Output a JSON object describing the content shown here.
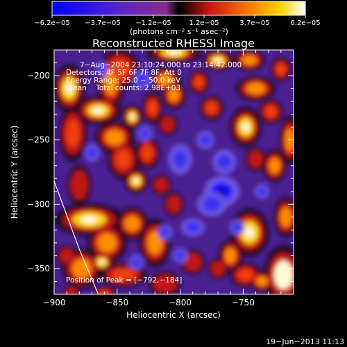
{
  "chart_data": {
    "type": "heatmap",
    "title": "Reconstructed RHESSI Image",
    "xlabel": "Heliocentric X (arcsec)",
    "ylabel": "Heliocentric Y (arcsec)",
    "xlim": [
      -900,
      -710
    ],
    "ylim": [
      -370,
      -180
    ],
    "x_ticks": [
      -900,
      -850,
      -800,
      -750
    ],
    "x_tick_labels": [
      "−900",
      "−850",
      "−800",
      "−750"
    ],
    "y_ticks": [
      -200,
      -250,
      -300,
      -350
    ],
    "y_tick_labels": [
      "−200",
      "−250",
      "−300",
      "−350"
    ],
    "colorbar": {
      "range": [
        -6.2e-05,
        6.2e-05
      ],
      "tick_labels": [
        "−6.2e−05",
        "−3.7e−05",
        "−1.2e−05",
        "1.2e−05",
        "3.7e−05",
        "6.2e−05"
      ],
      "unit_label": "(photons cm⁻² s⁻¹ asec⁻²)"
    },
    "info_lines": [
      "7−Aug−2004 23:10:24.000 to 23:14:42.000",
      "Detectors: 4F 5F 6F 7F 8F, Att 0",
      "Energy Range: 25.0 − 50.0 keV",
      "Clean    Total counts: 2.98E+03"
    ],
    "peak_label": "Position of Peak = [−792,−184]",
    "peak_position": [
      -792,
      -184
    ],
    "timestamp": "19−Jun−2013 11:13",
    "limb_curve": [
      [
        -900,
        -282
      ],
      [
        -880,
        -335
      ],
      [
        -865,
        -370
      ]
    ],
    "hotspots": [
      [
        -888,
        -210,
        8,
        12,
        0.9
      ],
      [
        -885,
        -245,
        7,
        14,
        0.6
      ],
      [
        -880,
        -285,
        6,
        10,
        0.5
      ],
      [
        -872,
        -312,
        18,
        8,
        0.9
      ],
      [
        -858,
        -330,
        10,
        10,
        0.8
      ],
      [
        -878,
        -350,
        10,
        10,
        0.7
      ],
      [
        -862,
        -345,
        6,
        5,
        0.9
      ],
      [
        -890,
        -340,
        5,
        5,
        0.5
      ],
      [
        -886,
        -368,
        4,
        3,
        0.4
      ],
      [
        -855,
        -205,
        7,
        14,
        0.8
      ],
      [
        -848,
        -195,
        10,
        10,
        0.6
      ],
      [
        -865,
        -227,
        12,
        7,
        0.9
      ],
      [
        -852,
        -248,
        10,
        8,
        0.7
      ],
      [
        -838,
        -232,
        5,
        6,
        0.9
      ],
      [
        -845,
        -265,
        8,
        10,
        0.6
      ],
      [
        -835,
        -282,
        6,
        6,
        0.9
      ],
      [
        -826,
        -260,
        6,
        8,
        0.6
      ],
      [
        -822,
        -225,
        5,
        8,
        0.6
      ],
      [
        -812,
        -203,
        8,
        6,
        0.8
      ],
      [
        -805,
        -215,
        6,
        7,
        0.7
      ],
      [
        -805,
        -182,
        14,
        5,
        0.9
      ],
      [
        -785,
        -205,
        5,
        6,
        0.6
      ],
      [
        -810,
        -238,
        5,
        5,
        0.5
      ],
      [
        -838,
        -315,
        8,
        8,
        0.8
      ],
      [
        -820,
        -330,
        8,
        12,
        0.7
      ],
      [
        -845,
        -355,
        12,
        6,
        0.6
      ],
      [
        -812,
        -362,
        8,
        6,
        0.5
      ],
      [
        -790,
        -345,
        6,
        6,
        0.5
      ],
      [
        -770,
        -350,
        5,
        5,
        0.4
      ],
      [
        -760,
        -340,
        6,
        8,
        0.7
      ],
      [
        -745,
        -322,
        10,
        12,
        0.9
      ],
      [
        -748,
        -355,
        8,
        6,
        0.6
      ],
      [
        -735,
        -360,
        6,
        5,
        0.8
      ],
      [
        -718,
        -355,
        10,
        15,
        1.0
      ],
      [
        -716,
        -310,
        6,
        10,
        0.7
      ],
      [
        -725,
        -270,
        6,
        8,
        0.7
      ],
      [
        -713,
        -250,
        5,
        12,
        0.8
      ],
      [
        -740,
        -265,
        5,
        6,
        0.5
      ],
      [
        -748,
        -240,
        8,
        10,
        0.9
      ],
      [
        -740,
        -210,
        10,
        6,
        0.8
      ],
      [
        -728,
        -228,
        6,
        6,
        0.6
      ],
      [
        -770,
        -188,
        8,
        5,
        0.9
      ],
      [
        -745,
        -188,
        8,
        5,
        0.7
      ],
      [
        -720,
        -195,
        5,
        6,
        0.6
      ],
      [
        -775,
        -225,
        6,
        6,
        0.6
      ],
      [
        -805,
        -300,
        5,
        6,
        0.5
      ],
      [
        -815,
        -285,
        5,
        5,
        0.5
      ],
      [
        -860,
        -370,
        6,
        4,
        0.6
      ]
    ],
    "coldspots": [
      [
        -767,
        -290,
        12,
        10,
        0.9
      ],
      [
        -765,
        -267,
        8,
        8,
        0.7
      ],
      [
        -800,
        -265,
        8,
        10,
        0.5
      ],
      [
        -830,
        -203,
        6,
        6,
        0.6
      ],
      [
        -828,
        -245,
        5,
        5,
        0.5
      ],
      [
        -780,
        -250,
        6,
        6,
        0.5
      ],
      [
        -790,
        -318,
        8,
        6,
        0.6
      ],
      [
        -755,
        -318,
        5,
        5,
        0.5
      ],
      [
        -870,
        -260,
        5,
        6,
        0.5
      ],
      [
        -862,
        -195,
        4,
        5,
        0.5
      ],
      [
        -800,
        -340,
        5,
        5,
        0.5
      ],
      [
        -735,
        -290,
        5,
        5,
        0.5
      ],
      [
        -812,
        -322,
        5,
        5,
        0.4
      ],
      [
        -775,
        -300,
        10,
        8,
        0.6
      ],
      [
        -835,
        -345,
        5,
        5,
        0.4
      ]
    ]
  }
}
